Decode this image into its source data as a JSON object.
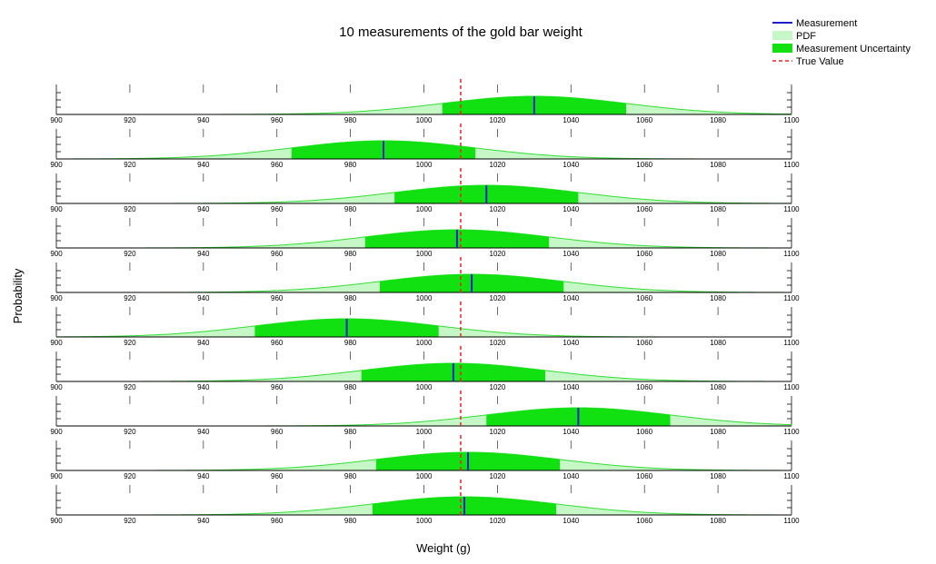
{
  "chart_data": {
    "type": "area",
    "title": "10 measurements of the gold bar weight",
    "xlabel": "Weight (g)",
    "ylabel": "Probability",
    "xlim": [
      900,
      1100
    ],
    "xticks": [
      900,
      920,
      940,
      960,
      980,
      1000,
      1020,
      1040,
      1060,
      1080,
      1100
    ],
    "true_value": 1010,
    "uncertainty": 25,
    "legend": {
      "placement": "top-right",
      "entries": [
        "Measurement",
        "PDF",
        "Measurement Uncertainty",
        "True Value"
      ]
    },
    "measurements": [
      1030,
      989,
      1017,
      1009,
      1013,
      979,
      1008,
      1042,
      1012,
      1011
    ],
    "colors": {
      "measurement": "#1f1fcc",
      "pdf_fill": "#c6f7c6",
      "pdf_line": "#33dd33",
      "uncertainty_fill": "#11e011",
      "true_value": "#ee2222",
      "axis": "#000000"
    }
  }
}
